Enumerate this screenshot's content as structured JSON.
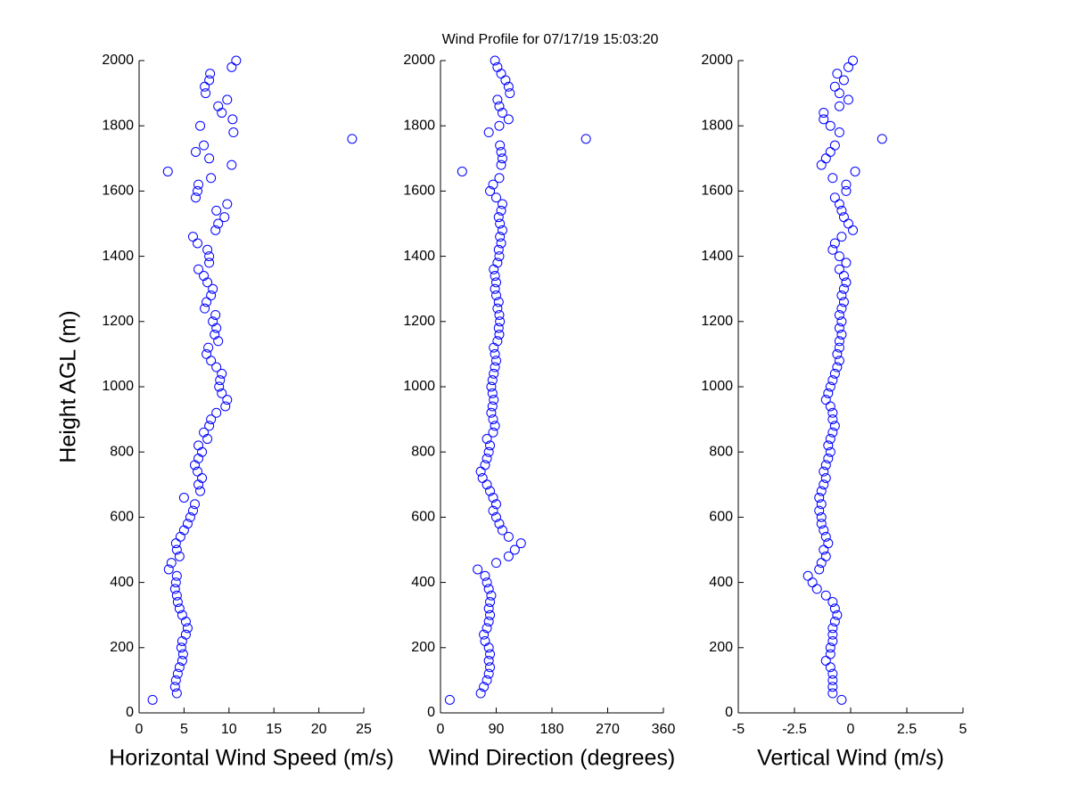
{
  "title": "Wind Profile for  07/17/19 15:03:20",
  "chart_data": [
    {
      "type": "scatter",
      "xlabel": "Horizontal Wind Speed (m/s)",
      "ylabel": "Height AGL (m)",
      "color": "#0000ff",
      "xlim": [
        0,
        25
      ],
      "xticks": [
        0,
        5,
        10,
        15,
        20,
        25
      ],
      "ylim": [
        0,
        2000
      ],
      "yticks": [
        0,
        200,
        400,
        600,
        800,
        1000,
        1200,
        1400,
        1600,
        1800,
        2000
      ],
      "x": [
        1.5,
        4.2,
        4.0,
        4.1,
        4.3,
        4.5,
        4.8,
        4.9,
        4.7,
        4.8,
        5.2,
        5.4,
        5.2,
        4.8,
        4.5,
        4.3,
        4.2,
        4.0,
        4.1,
        4.2,
        3.3,
        3.6,
        4.5,
        4.2,
        4.1,
        4.6,
        5.0,
        5.4,
        5.7,
        6.0,
        6.2,
        5.0,
        6.8,
        6.6,
        7.0,
        6.5,
        6.2,
        6.6,
        7.0,
        6.6,
        7.6,
        7.2,
        7.8,
        8.0,
        8.6,
        9.6,
        9.8,
        9.2,
        8.9,
        9.0,
        9.2,
        8.6,
        8.0,
        7.5,
        7.7,
        8.8,
        8.4,
        8.6,
        8.2,
        8.5,
        7.3,
        7.5,
        8.0,
        8.2,
        7.6,
        7.2,
        6.6,
        7.8,
        7.8,
        7.6,
        6.5,
        6.0,
        8.5,
        8.8,
        9.5,
        8.6,
        9.8,
        6.3,
        6.5,
        6.6,
        8.0,
        3.2,
        10.3,
        7.8,
        6.3,
        7.2,
        23.7,
        10.5,
        6.8,
        10.4,
        9.2,
        8.8,
        9.8,
        7.4,
        7.3,
        7.8,
        7.9,
        10.3,
        10.8
      ],
      "y": [
        40,
        60,
        80,
        100,
        120,
        140,
        160,
        180,
        200,
        220,
        240,
        260,
        280,
        300,
        320,
        340,
        360,
        380,
        400,
        420,
        440,
        460,
        480,
        500,
        520,
        540,
        560,
        580,
        600,
        620,
        640,
        660,
        680,
        700,
        720,
        740,
        760,
        780,
        800,
        820,
        840,
        860,
        880,
        900,
        920,
        940,
        960,
        980,
        1000,
        1020,
        1040,
        1060,
        1080,
        1100,
        1120,
        1140,
        1160,
        1180,
        1200,
        1220,
        1240,
        1260,
        1280,
        1300,
        1320,
        1340,
        1360,
        1380,
        1400,
        1420,
        1440,
        1460,
        1480,
        1500,
        1520,
        1540,
        1560,
        1580,
        1600,
        1620,
        1640,
        1660,
        1680,
        1700,
        1720,
        1740,
        1760,
        1780,
        1800,
        1820,
        1840,
        1860,
        1880,
        1900,
        1920,
        1940,
        1960,
        1980,
        2000
      ]
    },
    {
      "type": "scatter",
      "xlabel": "Wind Direction (degrees)",
      "color": "#0000ff",
      "xlim": [
        0,
        360
      ],
      "xticks": [
        0,
        90,
        180,
        270,
        360
      ],
      "ylim": [
        0,
        2000
      ],
      "yticks": [
        0,
        200,
        400,
        600,
        800,
        1000,
        1200,
        1400,
        1600,
        1800,
        2000
      ],
      "x": [
        15,
        65,
        70,
        75,
        78,
        80,
        78,
        80,
        78,
        72,
        70,
        75,
        78,
        80,
        78,
        80,
        82,
        78,
        75,
        72,
        60,
        90,
        110,
        120,
        130,
        110,
        100,
        95,
        90,
        85,
        90,
        85,
        80,
        75,
        68,
        65,
        72,
        75,
        78,
        80,
        75,
        85,
        88,
        85,
        82,
        84,
        86,
        84,
        82,
        84,
        86,
        88,
        90,
        88,
        86,
        92,
        95,
        94,
        96,
        95,
        92,
        94,
        90,
        88,
        90,
        88,
        86,
        92,
        95,
        94,
        98,
        96,
        100,
        96,
        94,
        98,
        100,
        90,
        80,
        85,
        95,
        35,
        98,
        100,
        98,
        96,
        235,
        78,
        95,
        110,
        100,
        95,
        92,
        112,
        110,
        105,
        98,
        92,
        88
      ],
      "y": [
        40,
        60,
        80,
        100,
        120,
        140,
        160,
        180,
        200,
        220,
        240,
        260,
        280,
        300,
        320,
        340,
        360,
        380,
        400,
        420,
        440,
        460,
        480,
        500,
        520,
        540,
        560,
        580,
        600,
        620,
        640,
        660,
        680,
        700,
        720,
        740,
        760,
        780,
        800,
        820,
        840,
        860,
        880,
        900,
        920,
        940,
        960,
        980,
        1000,
        1020,
        1040,
        1060,
        1080,
        1100,
        1120,
        1140,
        1160,
        1180,
        1200,
        1220,
        1240,
        1260,
        1280,
        1300,
        1320,
        1340,
        1360,
        1380,
        1400,
        1420,
        1440,
        1460,
        1480,
        1500,
        1520,
        1540,
        1560,
        1580,
        1600,
        1620,
        1640,
        1660,
        1680,
        1700,
        1720,
        1740,
        1760,
        1780,
        1800,
        1820,
        1840,
        1860,
        1880,
        1900,
        1920,
        1940,
        1960,
        1980,
        2000
      ]
    },
    {
      "type": "scatter",
      "xlabel": "Vertical Wind (m/s)",
      "color": "#0000ff",
      "xlim": [
        -5,
        5
      ],
      "xticks": [
        -5,
        -2.5,
        0,
        2.5,
        5
      ],
      "ylim": [
        0,
        2000
      ],
      "yticks": [
        0,
        200,
        400,
        600,
        800,
        1000,
        1200,
        1400,
        1600,
        1800,
        2000
      ],
      "x": [
        -0.4,
        -0.8,
        -0.8,
        -0.8,
        -0.8,
        -0.9,
        -1.1,
        -0.9,
        -0.9,
        -0.8,
        -0.8,
        -0.8,
        -0.7,
        -0.6,
        -0.7,
        -0.8,
        -1.1,
        -1.5,
        -1.7,
        -1.9,
        -1.4,
        -1.3,
        -1.1,
        -1.2,
        -1.0,
        -1.1,
        -1.2,
        -1.3,
        -1.3,
        -1.4,
        -1.3,
        -1.4,
        -1.3,
        -1.2,
        -1.1,
        -1.2,
        -1.1,
        -1.0,
        -0.9,
        -1.0,
        -0.9,
        -0.8,
        -0.7,
        -0.8,
        -0.8,
        -0.9,
        -1.1,
        -1.0,
        -0.9,
        -0.8,
        -0.7,
        -0.6,
        -0.5,
        -0.6,
        -0.5,
        -0.5,
        -0.4,
        -0.5,
        -0.4,
        -0.5,
        -0.4,
        -0.3,
        -0.4,
        -0.3,
        -0.2,
        -0.3,
        -0.5,
        -0.2,
        -0.5,
        -0.8,
        -0.7,
        -0.4,
        0.1,
        -0.1,
        -0.3,
        -0.4,
        -0.5,
        -0.7,
        -0.2,
        -0.2,
        -0.8,
        0.2,
        -1.3,
        -1.1,
        -0.9,
        -0.7,
        1.4,
        -0.5,
        -0.9,
        -1.2,
        -1.2,
        -0.5,
        -0.1,
        -0.5,
        -0.7,
        -0.3,
        -0.6,
        -0.1,
        0.1
      ],
      "y": [
        40,
        60,
        80,
        100,
        120,
        140,
        160,
        180,
        200,
        220,
        240,
        260,
        280,
        300,
        320,
        340,
        360,
        380,
        400,
        420,
        440,
        460,
        480,
        500,
        520,
        540,
        560,
        580,
        600,
        620,
        640,
        660,
        680,
        700,
        720,
        740,
        760,
        780,
        800,
        820,
        840,
        860,
        880,
        900,
        920,
        940,
        960,
        980,
        1000,
        1020,
        1040,
        1060,
        1080,
        1100,
        1120,
        1140,
        1160,
        1180,
        1200,
        1220,
        1240,
        1260,
        1280,
        1300,
        1320,
        1340,
        1360,
        1380,
        1400,
        1420,
        1440,
        1460,
        1480,
        1500,
        1520,
        1540,
        1560,
        1580,
        1600,
        1620,
        1640,
        1660,
        1680,
        1700,
        1720,
        1740,
        1760,
        1780,
        1800,
        1820,
        1840,
        1860,
        1880,
        1900,
        1920,
        1940,
        1960,
        1980,
        2000
      ]
    }
  ]
}
